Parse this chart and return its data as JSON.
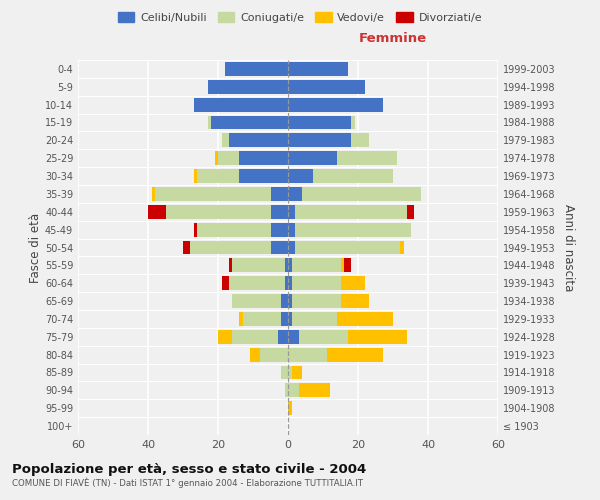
{
  "age_groups": [
    "100+",
    "95-99",
    "90-94",
    "85-89",
    "80-84",
    "75-79",
    "70-74",
    "65-69",
    "60-64",
    "55-59",
    "50-54",
    "45-49",
    "40-44",
    "35-39",
    "30-34",
    "25-29",
    "20-24",
    "15-19",
    "10-14",
    "5-9",
    "0-4"
  ],
  "birth_years": [
    "≤ 1903",
    "1904-1908",
    "1909-1913",
    "1914-1918",
    "1919-1923",
    "1924-1928",
    "1929-1933",
    "1934-1938",
    "1939-1943",
    "1944-1948",
    "1949-1953",
    "1954-1958",
    "1959-1963",
    "1964-1968",
    "1969-1973",
    "1974-1978",
    "1979-1983",
    "1984-1988",
    "1989-1993",
    "1994-1998",
    "1999-2003"
  ],
  "male": {
    "celibi": [
      0,
      0,
      0,
      0,
      0,
      3,
      2,
      2,
      1,
      1,
      5,
      5,
      5,
      5,
      14,
      14,
      17,
      22,
      27,
      23,
      18
    ],
    "coniugati": [
      0,
      0,
      1,
      2,
      8,
      13,
      11,
      14,
      16,
      15,
      23,
      21,
      30,
      33,
      12,
      6,
      2,
      1,
      0,
      0,
      0
    ],
    "vedovi": [
      0,
      0,
      0,
      0,
      3,
      4,
      1,
      0,
      0,
      0,
      0,
      0,
      0,
      1,
      1,
      1,
      0,
      0,
      0,
      0,
      0
    ],
    "divorziati": [
      0,
      0,
      0,
      0,
      0,
      0,
      0,
      0,
      2,
      1,
      2,
      1,
      5,
      0,
      0,
      0,
      0,
      0,
      0,
      0,
      0
    ]
  },
  "female": {
    "nubili": [
      0,
      0,
      0,
      0,
      0,
      3,
      1,
      1,
      1,
      1,
      2,
      2,
      2,
      4,
      7,
      14,
      18,
      18,
      27,
      22,
      17
    ],
    "coniugate": [
      0,
      0,
      3,
      1,
      11,
      14,
      13,
      14,
      14,
      14,
      30,
      33,
      32,
      34,
      23,
      17,
      5,
      1,
      0,
      0,
      0
    ],
    "vedove": [
      0,
      1,
      9,
      3,
      16,
      17,
      16,
      8,
      7,
      1,
      1,
      0,
      0,
      0,
      0,
      0,
      0,
      0,
      0,
      0,
      0
    ],
    "divorziate": [
      0,
      0,
      0,
      0,
      0,
      0,
      0,
      0,
      0,
      2,
      0,
      0,
      2,
      0,
      0,
      0,
      0,
      0,
      0,
      0,
      0
    ]
  },
  "colors": {
    "celibi": "#4472c4",
    "coniugati": "#c5d9a0",
    "vedovi": "#ffc000",
    "divorziati": "#cc0000"
  },
  "title": "Popolazione per età, sesso e stato civile - 2004",
  "subtitle": "COMUNE DI FIAVÈ (TN) - Dati ISTAT 1° gennaio 2004 - Elaborazione TUTTITALIA.IT",
  "xlabel_right": "Femmine",
  "ylabel_left": "Fasce di età",
  "ylabel_right": "Anni di nascita",
  "xlim": 60,
  "background_color": "#f0f0f0",
  "legend_labels": [
    "Celibi/Nubili",
    "Coniugati/e",
    "Vedovi/e",
    "Divorziati/e"
  ]
}
